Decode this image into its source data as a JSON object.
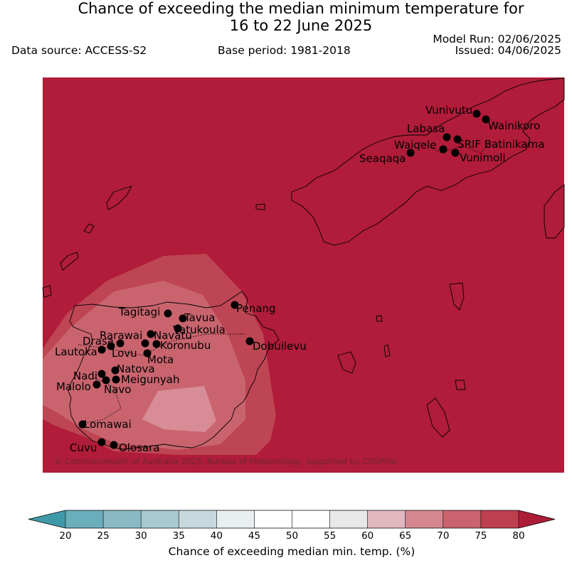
{
  "header": {
    "title_line1": "Chance of exceeding the median minimum temperature for",
    "title_line2": "16 to 22 June 2025",
    "data_source": "Data source: ACCESS-S2",
    "base_period": "Base period: 1981-2018",
    "model_run": "Model Run: 02/06/2025",
    "issued": "Issued: 04/06/2025"
  },
  "map": {
    "background_color": "#b01c39",
    "copyright": "© Commonwealth of Australia 2025, Bureau of Meteorology, supported by COSPPac",
    "stations": [
      {
        "name": "Vunivutu"
      },
      {
        "name": "Wainikoro"
      },
      {
        "name": "Labasa"
      },
      {
        "name": "SRIF Batinikama"
      },
      {
        "name": "Waiqele"
      },
      {
        "name": "Vunimoli"
      },
      {
        "name": "Seaqaqa"
      },
      {
        "name": "Penang"
      },
      {
        "name": "Tagitagi"
      },
      {
        "name": "Tavua"
      },
      {
        "name": "Vatukoula"
      },
      {
        "name": "Rarawai"
      },
      {
        "name": "Navatu"
      },
      {
        "name": "Drasa"
      },
      {
        "name": "Koronubu"
      },
      {
        "name": "Lautoka"
      },
      {
        "name": "Lovu"
      },
      {
        "name": "Mota"
      },
      {
        "name": "Dobuilevu"
      },
      {
        "name": "Natova"
      },
      {
        "name": "Nadi"
      },
      {
        "name": "Meigunyah"
      },
      {
        "name": "Malolo"
      },
      {
        "name": "Navo"
      },
      {
        "name": "Lomawai"
      },
      {
        "name": "Cuvu"
      },
      {
        "name": "Olosara"
      }
    ]
  },
  "colorbar": {
    "label": "Chance of exceeding median min. temp. (%)",
    "ticks": [
      "20",
      "25",
      "30",
      "35",
      "40",
      "45",
      "50",
      "55",
      "60",
      "65",
      "70",
      "75",
      "80"
    ],
    "under_color": "#3f9aa8",
    "over_color": "#ad1c36",
    "colors": [
      "#6aaebb",
      "#89bac4",
      "#a8c9cf",
      "#c6d9dc",
      "#e9eef0",
      "#ffffff",
      "#ffffff",
      "#e8e8e9",
      "#e1b8c0",
      "#d4878f",
      "#c9636d",
      "#be3f4f"
    ]
  }
}
